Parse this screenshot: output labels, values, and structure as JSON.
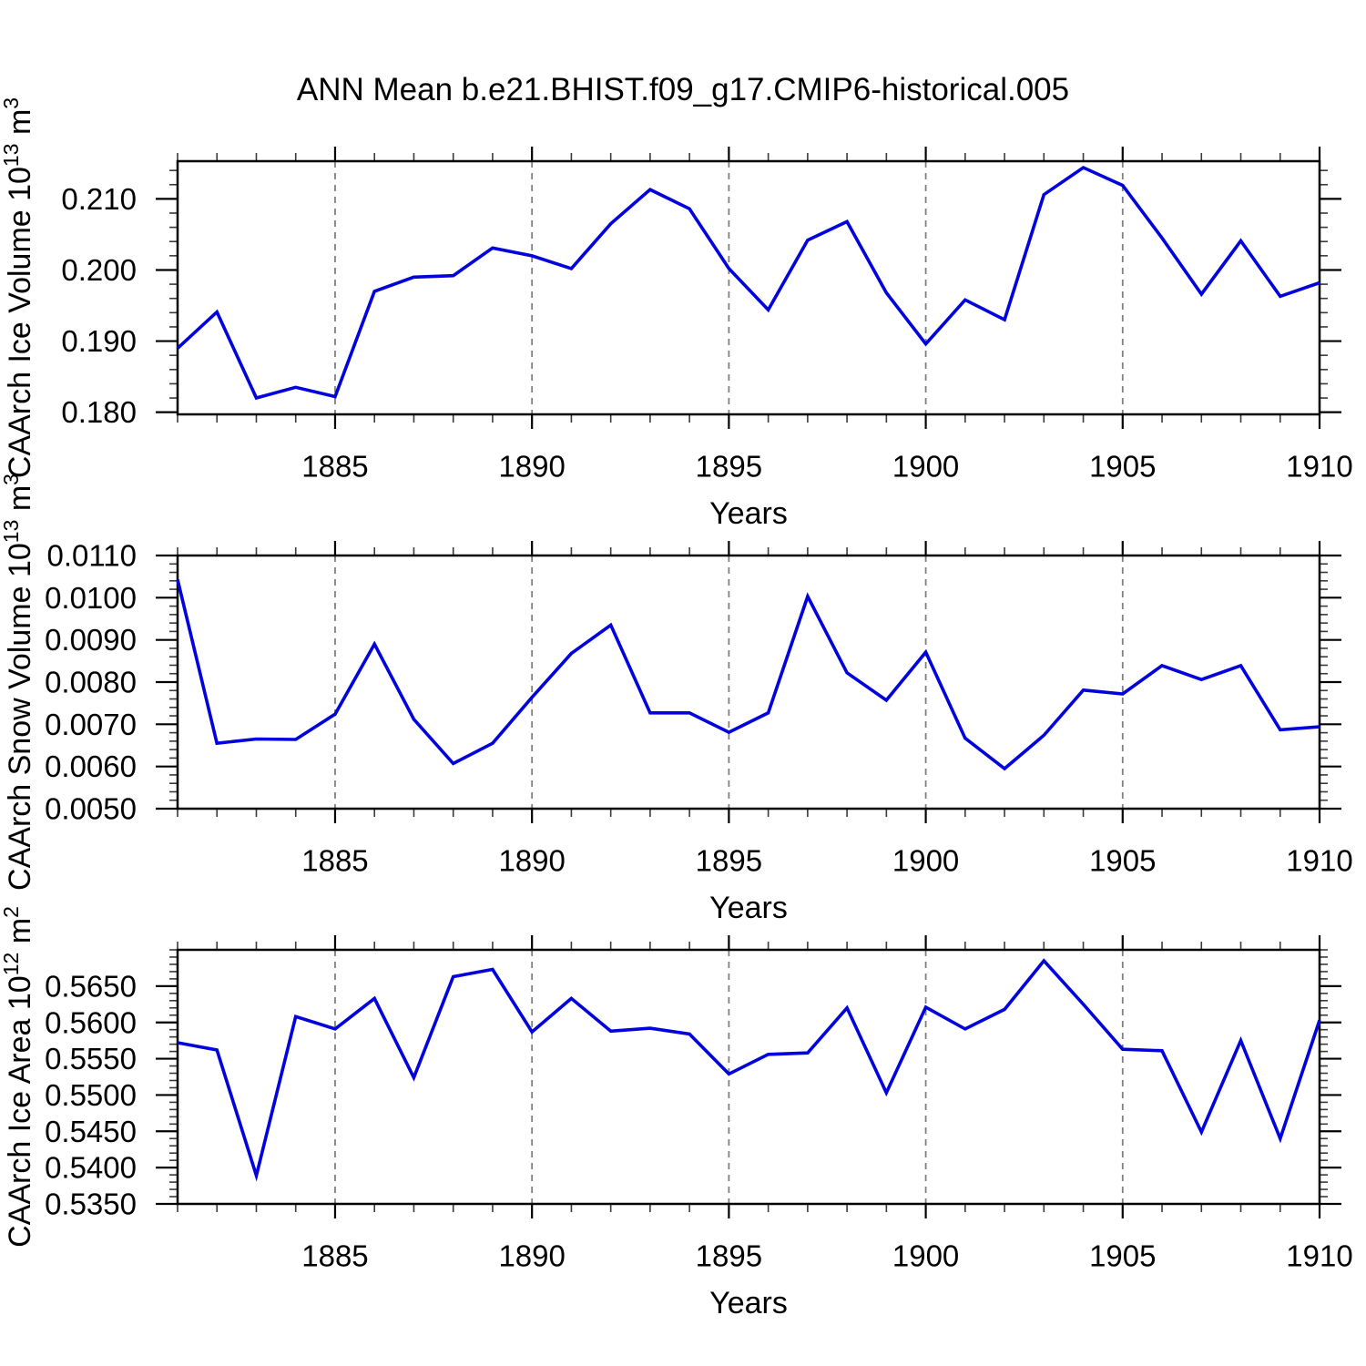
{
  "title": "ANN Mean b.e21.BHIST.f09_g17.CMIP6-historical.005",
  "line_color": "#0202dd",
  "grid_color": "#808080",
  "axis_color": "#000000",
  "chart_data": [
    {
      "type": "line",
      "name": "ice-volume",
      "ylabel": "CAArch Ice Volume 10^13 m^3",
      "xlabel": "Years",
      "x": [
        1881,
        1882,
        1883,
        1884,
        1885,
        1886,
        1887,
        1888,
        1889,
        1890,
        1891,
        1892,
        1893,
        1894,
        1895,
        1896,
        1897,
        1898,
        1899,
        1900,
        1901,
        1902,
        1903,
        1904,
        1905,
        1906,
        1907,
        1908,
        1909,
        1910
      ],
      "values": [
        0.189,
        0.1941,
        0.182,
        0.1835,
        0.1822,
        0.197,
        0.199,
        0.1992,
        0.2031,
        0.202,
        0.2002,
        0.2065,
        0.2113,
        0.2086,
        0.2002,
        0.1944,
        0.2042,
        0.2068,
        0.1968,
        0.1896,
        0.1958,
        0.193,
        0.2106,
        0.2144,
        0.2119,
        0.2045,
        0.1966,
        0.2041,
        0.1963,
        0.1982
      ],
      "xlim": [
        1881,
        1910
      ],
      "ylim": [
        0.1797,
        0.2153
      ],
      "x_minor_step": 1,
      "y_minor_step": 0.002,
      "xticks": [
        {
          "v": 1885,
          "label": "1885"
        },
        {
          "v": 1890,
          "label": "1890"
        },
        {
          "v": 1895,
          "label": "1895"
        },
        {
          "v": 1900,
          "label": "1900"
        },
        {
          "v": 1905,
          "label": "1905"
        },
        {
          "v": 1910,
          "label": "1910"
        }
      ],
      "yticks": [
        {
          "v": 0.18,
          "label": "0.180"
        },
        {
          "v": 0.19,
          "label": "0.190"
        },
        {
          "v": 0.2,
          "label": "0.200"
        },
        {
          "v": 0.21,
          "label": "0.210"
        }
      ],
      "grid_x": [
        1885,
        1890,
        1895,
        1900,
        1905
      ],
      "grid_dashed": true,
      "legend": "none"
    },
    {
      "type": "line",
      "name": "snow-volume",
      "ylabel": "CAArch Snow Volume 10^13 m^3",
      "xlabel": "Years",
      "x": [
        1881,
        1882,
        1883,
        1884,
        1885,
        1886,
        1887,
        1888,
        1889,
        1890,
        1891,
        1892,
        1893,
        1894,
        1895,
        1896,
        1897,
        1898,
        1899,
        1900,
        1901,
        1902,
        1903,
        1904,
        1905,
        1906,
        1907,
        1908,
        1909,
        1910
      ],
      "values": [
        0.01043,
        0.00655,
        0.00665,
        0.00664,
        0.00724,
        0.0089,
        0.00712,
        0.00607,
        0.00655,
        0.00764,
        0.00868,
        0.00935,
        0.00727,
        0.00727,
        0.00681,
        0.00727,
        0.01003,
        0.00822,
        0.00757,
        0.00871,
        0.00667,
        0.00595,
        0.00674,
        0.00781,
        0.00772,
        0.00839,
        0.00806,
        0.00839,
        0.00687,
        0.00694
      ],
      "xlim": [
        1881,
        1910
      ],
      "ylim": [
        0.005,
        0.011
      ],
      "x_minor_step": 1,
      "y_minor_step": 0.0002,
      "xticks": [
        {
          "v": 1885,
          "label": "1885"
        },
        {
          "v": 1890,
          "label": "1890"
        },
        {
          "v": 1895,
          "label": "1895"
        },
        {
          "v": 1900,
          "label": "1900"
        },
        {
          "v": 1905,
          "label": "1905"
        },
        {
          "v": 1910,
          "label": "1910"
        }
      ],
      "yticks": [
        {
          "v": 0.005,
          "label": "0.0050"
        },
        {
          "v": 0.006,
          "label": "0.0060"
        },
        {
          "v": 0.007,
          "label": "0.0070"
        },
        {
          "v": 0.008,
          "label": "0.0080"
        },
        {
          "v": 0.009,
          "label": "0.0090"
        },
        {
          "v": 0.01,
          "label": "0.0100"
        },
        {
          "v": 0.011,
          "label": "0.0110"
        }
      ],
      "grid_x": [
        1885,
        1890,
        1895,
        1900,
        1905
      ],
      "grid_dashed": true,
      "legend": "none"
    },
    {
      "type": "line",
      "name": "ice-area",
      "ylabel": "CAArch Ice Area 10^12 m^2",
      "xlabel": "Years",
      "x": [
        1881,
        1882,
        1883,
        1884,
        1885,
        1886,
        1887,
        1888,
        1889,
        1890,
        1891,
        1892,
        1893,
        1894,
        1895,
        1896,
        1897,
        1898,
        1899,
        1900,
        1901,
        1902,
        1903,
        1904,
        1905,
        1906,
        1907,
        1908,
        1909,
        1910
      ],
      "values": [
        0.5572,
        0.5562,
        0.5389,
        0.5608,
        0.5591,
        0.5633,
        0.5524,
        0.5663,
        0.5673,
        0.5587,
        0.5633,
        0.5588,
        0.5592,
        0.5584,
        0.5529,
        0.5556,
        0.5558,
        0.562,
        0.5503,
        0.5621,
        0.5591,
        0.5618,
        0.5685,
        0.5625,
        0.5563,
        0.5561,
        0.5449,
        0.5575,
        0.544,
        0.5603
      ],
      "xlim": [
        1881,
        1910
      ],
      "ylim": [
        0.535,
        0.57
      ],
      "x_minor_step": 1,
      "y_minor_step": 0.001,
      "xticks": [
        {
          "v": 1885,
          "label": "1885"
        },
        {
          "v": 1890,
          "label": "1890"
        },
        {
          "v": 1895,
          "label": "1895"
        },
        {
          "v": 1900,
          "label": "1900"
        },
        {
          "v": 1905,
          "label": "1905"
        },
        {
          "v": 1910,
          "label": "1910"
        }
      ],
      "yticks": [
        {
          "v": 0.535,
          "label": "0.5350"
        },
        {
          "v": 0.54,
          "label": "0.5400"
        },
        {
          "v": 0.545,
          "label": "0.5450"
        },
        {
          "v": 0.55,
          "label": "0.5500"
        },
        {
          "v": 0.555,
          "label": "0.5550"
        },
        {
          "v": 0.56,
          "label": "0.5600"
        },
        {
          "v": 0.565,
          "label": "0.5650"
        }
      ],
      "grid_x": [
        1885,
        1890,
        1895,
        1900,
        1905
      ],
      "grid_dashed": true,
      "legend": "none"
    }
  ]
}
